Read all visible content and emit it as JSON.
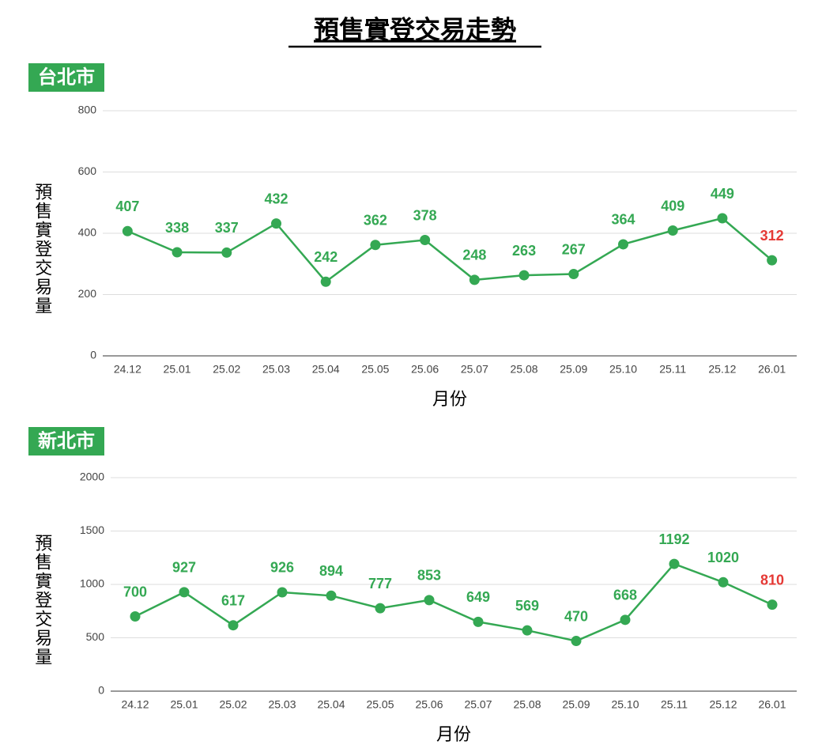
{
  "title": "預售實登交易走勢",
  "chart_data": [
    {
      "type": "line",
      "title": "台北市",
      "ylabel": "預售實登交易量",
      "xlabel": "月份",
      "categories": [
        "24.12",
        "25.01",
        "25.02",
        "25.03",
        "25.04",
        "25.05",
        "25.06",
        "25.07",
        "25.08",
        "25.09",
        "25.10",
        "25.11",
        "25.12",
        "26.01"
      ],
      "values": [
        407,
        338,
        337,
        432,
        242,
        362,
        378,
        248,
        263,
        267,
        364,
        409,
        449,
        312
      ],
      "color": "#34a853",
      "label_color": "#34a853",
      "last_label_color": "#e53935",
      "ylim": [
        0,
        800
      ],
      "yticks": [
        0,
        200,
        400,
        600,
        800
      ],
      "grid": true
    },
    {
      "type": "line",
      "title": "新北市",
      "ylabel": "預售實登交易量",
      "xlabel": "月份",
      "categories": [
        "24.12",
        "25.01",
        "25.02",
        "25.03",
        "25.04",
        "25.05",
        "25.06",
        "25.07",
        "25.08",
        "25.09",
        "25.10",
        "25.11",
        "25.12",
        "26.01"
      ],
      "values": [
        700,
        927,
        617,
        926,
        894,
        777,
        853,
        649,
        569,
        470,
        668,
        1192,
        1020,
        810
      ],
      "color": "#34a853",
      "label_color": "#34a853",
      "last_label_color": "#e53935",
      "ylim": [
        0,
        2000
      ],
      "yticks": [
        0,
        500,
        1000,
        1500,
        2000
      ],
      "grid": true
    }
  ]
}
